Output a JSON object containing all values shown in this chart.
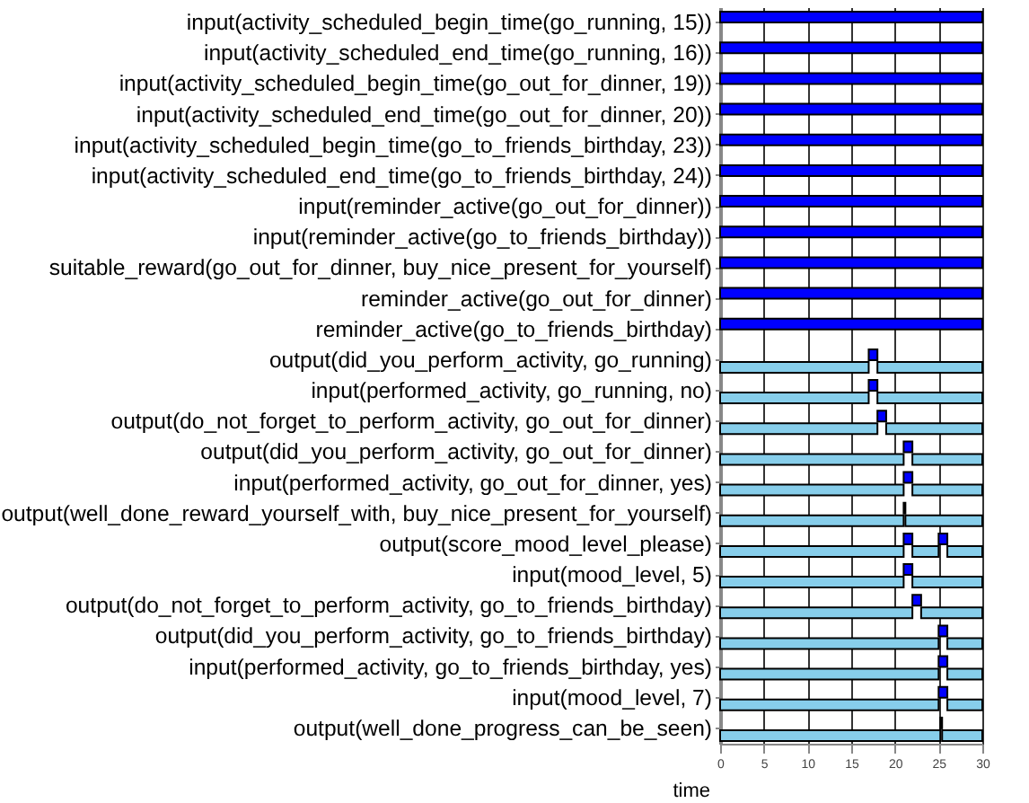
{
  "chart_data": {
    "type": "bar",
    "orientation": "horizontal",
    "xlabel": "time",
    "categories": [
      "input(activity_scheduled_begin_time(go_running, 15))",
      "input(activity_scheduled_end_time(go_running, 16))",
      "input(activity_scheduled_begin_time(go_out_for_dinner, 19))",
      "input(activity_scheduled_end_time(go_out_for_dinner, 20))",
      "input(activity_scheduled_begin_time(go_to_friends_birthday, 23))",
      "input(activity_scheduled_end_time(go_to_friends_birthday, 24))",
      "input(reminder_active(go_out_for_dinner))",
      "input(reminder_active(go_to_friends_birthday))",
      "suitable_reward(go_out_for_dinner, buy_nice_present_for_yourself)",
      "reminder_active(go_out_for_dinner)",
      "reminder_active(go_to_friends_birthday)",
      "output(did_you_perform_activity, go_running)",
      "input(performed_activity, go_running, no)",
      "output(do_not_forget_to_perform_activity, go_out_for_dinner)",
      "output(did_you_perform_activity, go_out_for_dinner)",
      "input(performed_activity, go_out_for_dinner, yes)",
      "output(well_done_reward_yourself_with, buy_nice_present_for_yourself)",
      "output(score_mood_level_please)",
      "input(mood_level, 5)",
      "output(do_not_forget_to_perform_activity, go_to_friends_birthday)",
      "output(did_you_perform_activity, go_to_friends_birthday)",
      "input(performed_activity, go_to_friends_birthday, yes)",
      "input(mood_level, 7)",
      "output(well_done_progress_can_be_seen)"
    ],
    "series": [
      {
        "color": "#0000ff",
        "base": [
          0,
          0,
          0,
          0,
          0,
          0,
          0,
          0,
          0,
          0,
          0,
          17,
          17,
          18,
          21,
          21,
          21,
          21,
          21,
          22,
          25,
          25,
          25,
          25.2
        ],
        "values": [
          30,
          30,
          30,
          30,
          30,
          30,
          30,
          30,
          30,
          30,
          30,
          1,
          1,
          1,
          1,
          1,
          0.2,
          1,
          1,
          1,
          1,
          1,
          1,
          0.2
        ]
      },
      {
        "color": "#0000ff",
        "base": [
          null,
          null,
          null,
          null,
          null,
          null,
          null,
          null,
          null,
          null,
          null,
          null,
          null,
          null,
          null,
          null,
          null,
          25,
          null,
          null,
          null,
          null,
          null,
          null
        ],
        "values": [
          null,
          null,
          null,
          null,
          null,
          null,
          null,
          null,
          null,
          null,
          null,
          null,
          null,
          null,
          null,
          null,
          null,
          1,
          null,
          null,
          null,
          null,
          null,
          null
        ]
      },
      {
        "color": "#87ceeb",
        "base": [
          null,
          null,
          null,
          null,
          null,
          null,
          null,
          null,
          null,
          null,
          null,
          0,
          0,
          0,
          0,
          0,
          0,
          0,
          0,
          0,
          0,
          0,
          0,
          0
        ],
        "values": [
          null,
          null,
          null,
          null,
          null,
          null,
          null,
          null,
          null,
          null,
          null,
          17,
          17,
          18,
          21,
          21,
          21,
          21,
          21,
          22,
          25,
          25,
          25,
          25.2
        ]
      },
      {
        "color": "#87ceeb",
        "base": [
          null,
          null,
          null,
          null,
          null,
          null,
          null,
          null,
          null,
          null,
          null,
          18,
          18,
          19,
          22,
          22,
          21.2,
          22,
          22,
          23,
          26,
          26,
          26,
          25.4
        ],
        "values": [
          null,
          null,
          null,
          null,
          null,
          null,
          null,
          null,
          null,
          null,
          null,
          12,
          12,
          11,
          8,
          8,
          8.8,
          3,
          8,
          7,
          4,
          4,
          4,
          4.6
        ]
      },
      {
        "color": "#87ceeb",
        "base": [
          null,
          null,
          null,
          null,
          null,
          null,
          null,
          null,
          null,
          null,
          null,
          null,
          null,
          null,
          null,
          null,
          null,
          26,
          null,
          null,
          null,
          null,
          null,
          null
        ],
        "values": [
          null,
          null,
          null,
          null,
          null,
          null,
          null,
          null,
          null,
          null,
          null,
          null,
          null,
          null,
          null,
          null,
          null,
          4,
          null,
          null,
          null,
          null,
          null,
          null
        ]
      }
    ],
    "xlim": [
      0,
      30
    ],
    "xticks": [
      0,
      5,
      10,
      15,
      20,
      25,
      30
    ],
    "grid": "x"
  }
}
